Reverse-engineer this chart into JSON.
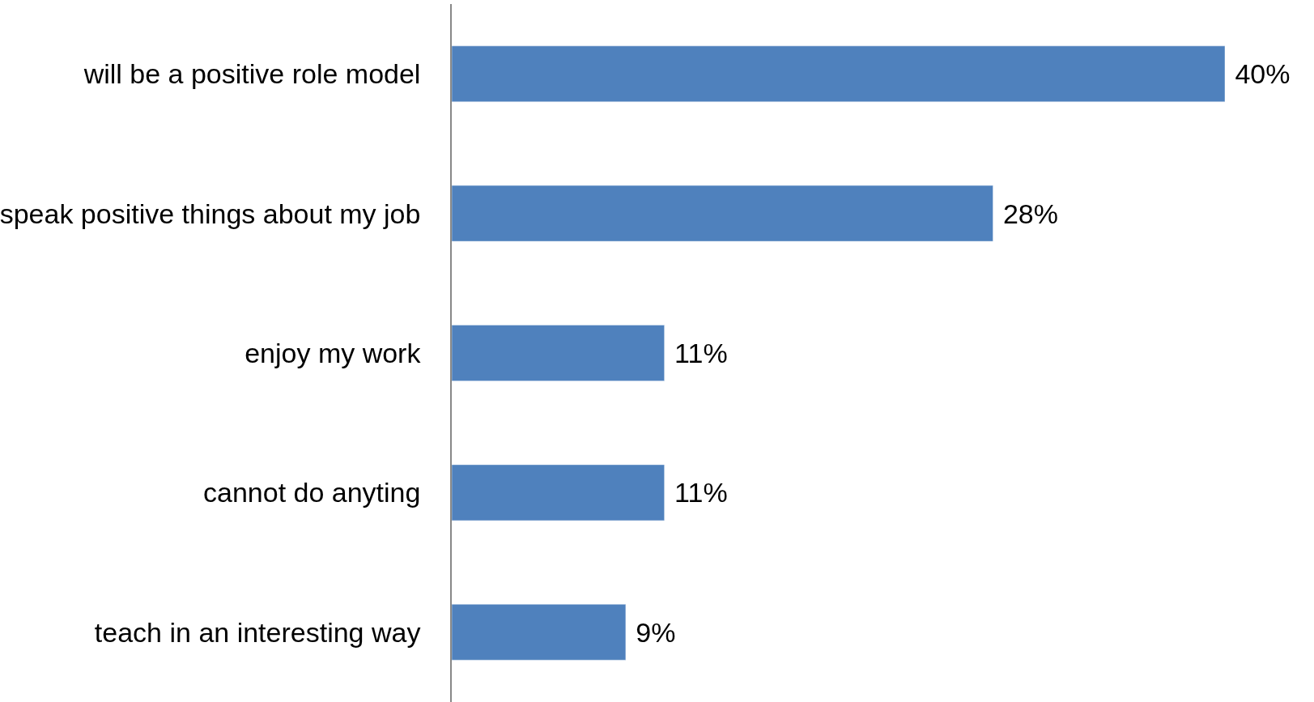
{
  "chart_data": {
    "type": "bar",
    "orientation": "horizontal",
    "categories": [
      "will be a positive role model",
      "speak positive things about my job",
      "enjoy my work",
      "cannot do anyting",
      "teach in an interesting way"
    ],
    "values": [
      40,
      28,
      11,
      11,
      9
    ],
    "value_labels": [
      "40%",
      "28%",
      "11%",
      "11%",
      "9%"
    ],
    "color": "#4f81bd",
    "xlim": [
      0,
      40
    ],
    "tick_labels": "y"
  }
}
